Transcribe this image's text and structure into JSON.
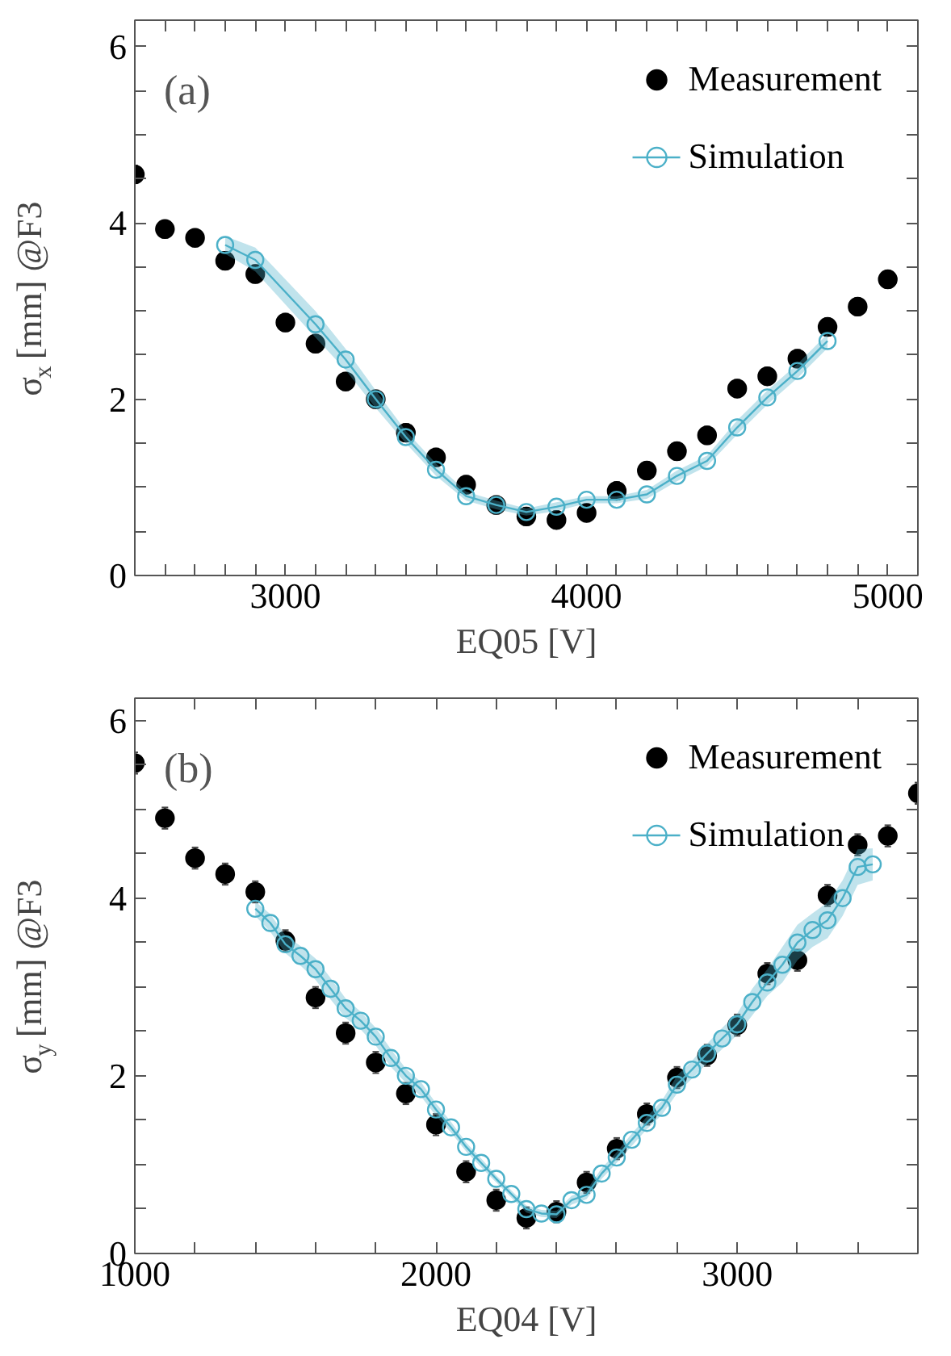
{
  "chart_data": [
    {
      "type": "scatter",
      "xlabel": "EQ05 [V]",
      "ylabel": "σ$_{x}$ [mm] @F3",
      "annotations": [
        "(a)"
      ],
      "xlim": [
        2500,
        5100
      ],
      "ylim": [
        0,
        6.3
      ],
      "xticks": [
        {
          "value": 2600,
          "label": null
        },
        {
          "value": 2700,
          "label": null
        },
        {
          "value": 2800,
          "label": null
        },
        {
          "value": 2900,
          "label": null
        },
        3000,
        {
          "value": 3100,
          "label": null
        },
        {
          "value": 3200,
          "label": null
        },
        {
          "value": 3300,
          "label": null
        },
        {
          "value": 3400,
          "label": null
        },
        {
          "value": 3500,
          "label": null
        },
        {
          "value": 3600,
          "label": null
        },
        {
          "value": 3700,
          "label": null
        },
        {
          "value": 3800,
          "label": null
        },
        {
          "value": 3900,
          "label": null
        },
        4000,
        {
          "value": 4100,
          "label": null
        },
        {
          "value": 4200,
          "label": null
        },
        {
          "value": 4300,
          "label": null
        },
        {
          "value": 4400,
          "label": null
        },
        {
          "value": 4500,
          "label": null
        },
        {
          "value": 4600,
          "label": null
        },
        {
          "value": 4700,
          "label": null
        },
        {
          "value": 4800,
          "label": null
        },
        {
          "value": 4900,
          "label": null
        },
        5000
      ],
      "yticks": [
        0,
        {
          "value": 0.5,
          "label": null
        },
        {
          "value": 1,
          "label": null
        },
        {
          "value": 1.5,
          "label": null
        },
        2,
        {
          "value": 2.5,
          "label": null
        },
        {
          "value": 3,
          "label": null
        },
        {
          "value": 3.5,
          "label": null
        },
        4,
        {
          "value": 4.5,
          "label": null
        },
        {
          "value": 5,
          "label": null
        },
        {
          "value": 5.5,
          "label": null
        },
        6
      ],
      "legend": "top right",
      "grid": false,
      "series": [
        {
          "name": "Measurement",
          "marker": "circle",
          "color": "#000000",
          "x": [
            2500,
            2600,
            2700,
            2800,
            2900,
            3000,
            3100,
            3200,
            3300,
            3400,
            3500,
            3600,
            3700,
            3800,
            3900,
            4000,
            4100,
            4200,
            4300,
            4400,
            4500,
            4600,
            4700,
            4800,
            4900,
            5000
          ],
          "values": [
            4.55,
            3.93,
            3.83,
            3.57,
            3.42,
            2.87,
            2.63,
            2.2,
            2.0,
            1.62,
            1.34,
            1.03,
            0.8,
            0.67,
            0.63,
            0.71,
            0.96,
            1.19,
            1.41,
            1.59,
            2.12,
            2.26,
            2.46,
            2.82,
            3.05,
            3.36
          ],
          "errors": [
            0.1,
            0.1,
            0.1,
            0.1,
            0.1,
            0.1,
            0.1,
            0.1,
            0.1,
            0.1,
            0.1,
            0.1,
            0.1,
            0.1,
            0.1,
            0.1,
            0.1,
            0.1,
            0.1,
            0.1,
            0.1,
            0.1,
            0.1,
            0.1,
            0.1,
            0.1
          ]
        },
        {
          "name": "Simulation",
          "type": "line",
          "marker": "circle",
          "line_style": "solid",
          "color": "#4bb0c8",
          "x": [
            2800,
            2900,
            3100,
            3200,
            3300,
            3400,
            3500,
            3600,
            3700,
            3800,
            3900,
            4000,
            4100,
            4200,
            4300,
            4400,
            4500,
            4600,
            4700,
            4800
          ],
          "values": [
            3.75,
            3.58,
            2.85,
            2.45,
            2.0,
            1.57,
            1.2,
            0.9,
            0.8,
            0.72,
            0.78,
            0.86,
            0.86,
            0.92,
            1.13,
            1.3,
            1.68,
            2.02,
            2.32,
            2.66
          ],
          "lower": [
            3.65,
            3.45,
            2.7,
            2.33,
            1.9,
            1.5,
            1.13,
            0.85,
            0.75,
            0.68,
            0.73,
            0.82,
            0.82,
            0.87,
            1.07,
            1.24,
            1.6,
            1.94,
            2.24,
            2.58
          ],
          "upper": [
            3.85,
            3.72,
            3.0,
            2.57,
            2.1,
            1.64,
            1.27,
            0.95,
            0.85,
            0.76,
            0.83,
            0.9,
            0.9,
            0.97,
            1.19,
            1.36,
            1.76,
            2.1,
            2.4,
            2.74
          ]
        }
      ]
    },
    {
      "type": "scatter",
      "xlabel": "EQ04 [V]",
      "ylabel": "σ$_{y}$ [mm] @F3",
      "annotations": [
        "(b)"
      ],
      "xlim": [
        1000,
        3600
      ],
      "ylim": [
        0,
        6.25
      ],
      "xticks": [
        1000,
        {
          "value": 1200,
          "label": null
        },
        {
          "value": 1400,
          "label": null
        },
        {
          "value": 1600,
          "label": null
        },
        {
          "value": 1800,
          "label": null
        },
        2000,
        {
          "value": 2200,
          "label": null
        },
        {
          "value": 2400,
          "label": null
        },
        {
          "value": 2600,
          "label": null
        },
        {
          "value": 2800,
          "label": null
        },
        3000,
        {
          "value": 3200,
          "label": null
        },
        {
          "value": 3400,
          "label": null
        }
      ],
      "yticks": [
        0,
        {
          "value": 0.5,
          "label": null
        },
        {
          "value": 1,
          "label": null
        },
        {
          "value": 1.5,
          "label": null
        },
        2,
        {
          "value": 2.5,
          "label": null
        },
        {
          "value": 3,
          "label": null
        },
        {
          "value": 3.5,
          "label": null
        },
        4,
        {
          "value": 4.5,
          "label": null
        },
        {
          "value": 5,
          "label": null
        },
        {
          "value": 5.5,
          "label": null
        },
        6
      ],
      "legend": "top right",
      "grid": false,
      "series": [
        {
          "name": "Measurement",
          "marker": "circle",
          "color": "#000000",
          "x": [
            1000,
            1100,
            1200,
            1300,
            1400,
            1500,
            1600,
            1700,
            1800,
            1900,
            2000,
            2100,
            2200,
            2300,
            2400,
            2500,
            2600,
            2700,
            2800,
            2900,
            3000,
            3100,
            3200,
            3300,
            3400,
            3500,
            3600
          ],
          "values": [
            5.52,
            4.9,
            4.45,
            4.27,
            4.07,
            3.52,
            2.88,
            2.48,
            2.15,
            1.8,
            1.45,
            0.92,
            0.6,
            0.4,
            0.47,
            0.8,
            1.18,
            1.57,
            1.98,
            2.23,
            2.57,
            3.15,
            3.3,
            4.03,
            4.6,
            4.7,
            5.18
          ],
          "errors": [
            0.12,
            0.12,
            0.12,
            0.12,
            0.12,
            0.12,
            0.12,
            0.12,
            0.12,
            0.12,
            0.12,
            0.12,
            0.12,
            0.12,
            0.12,
            0.12,
            0.12,
            0.12,
            0.12,
            0.12,
            0.12,
            0.12,
            0.12,
            0.12,
            0.12,
            0.12,
            0.12
          ]
        },
        {
          "name": "Simulation",
          "type": "line",
          "marker": "circle",
          "line_style": "solid",
          "color": "#4bb0c8",
          "x": [
            1400,
            1450,
            1500,
            1550,
            1600,
            1650,
            1700,
            1750,
            1800,
            1850,
            1900,
            1950,
            2000,
            2050,
            2100,
            2150,
            2200,
            2250,
            2300,
            2350,
            2400,
            2450,
            2500,
            2550,
            2600,
            2650,
            2700,
            2750,
            2800,
            2850,
            2900,
            2950,
            3000,
            3050,
            3100,
            3150,
            3200,
            3250,
            3300,
            3350,
            3400,
            3450
          ],
          "values": [
            3.88,
            3.72,
            3.48,
            3.35,
            3.2,
            2.98,
            2.76,
            2.62,
            2.44,
            2.2,
            2.0,
            1.85,
            1.62,
            1.42,
            1.2,
            1.02,
            0.84,
            0.67,
            0.5,
            0.45,
            0.44,
            0.6,
            0.66,
            0.9,
            1.08,
            1.28,
            1.47,
            1.64,
            1.9,
            2.07,
            2.25,
            2.42,
            2.58,
            2.83,
            3.05,
            3.25,
            3.5,
            3.64,
            3.75,
            4.0,
            4.35,
            4.38
          ],
          "lower": [
            3.8,
            3.62,
            3.38,
            3.24,
            3.08,
            2.86,
            2.65,
            2.52,
            2.34,
            2.1,
            1.92,
            1.77,
            1.55,
            1.36,
            1.15,
            0.97,
            0.8,
            0.63,
            0.46,
            0.41,
            0.4,
            0.55,
            0.61,
            0.84,
            1.02,
            1.21,
            1.4,
            1.56,
            1.8,
            1.97,
            2.14,
            2.3,
            2.46,
            2.68,
            2.9,
            3.05,
            3.3,
            3.45,
            3.55,
            3.8,
            4.15,
            4.2
          ],
          "upper": [
            3.96,
            3.82,
            3.58,
            3.46,
            3.32,
            3.1,
            2.87,
            2.72,
            2.54,
            2.3,
            2.08,
            1.93,
            1.69,
            1.48,
            1.25,
            1.07,
            0.88,
            0.71,
            0.54,
            0.49,
            0.48,
            0.65,
            0.71,
            0.96,
            1.14,
            1.35,
            1.54,
            1.72,
            2.0,
            2.17,
            2.36,
            2.54,
            2.7,
            2.98,
            3.2,
            3.45,
            3.7,
            3.83,
            3.95,
            4.2,
            4.55,
            4.56
          ]
        }
      ]
    }
  ]
}
